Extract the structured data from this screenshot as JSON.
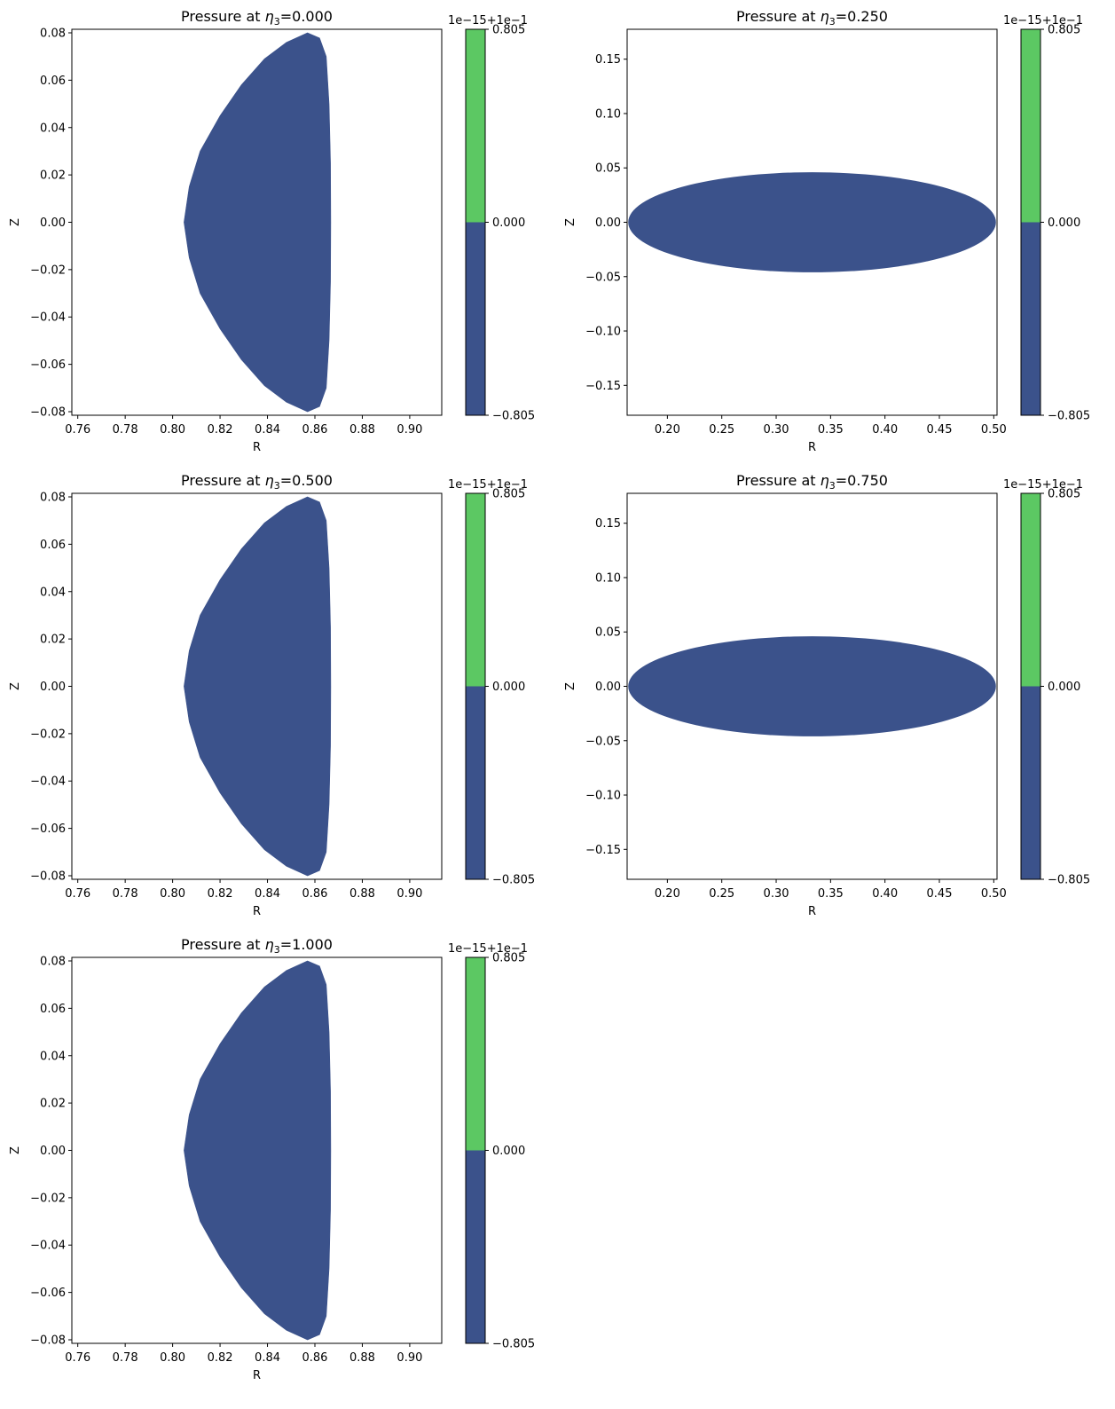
{
  "colors": {
    "interior": "#3b528b",
    "upper": "#5cc863",
    "axis": "#000000"
  },
  "chart_data": [
    {
      "type": "heatmap",
      "title": "Pressure at η3=0.000",
      "title_prefix": "Pressure at ",
      "title_symbol": "η",
      "title_sub": "3",
      "title_value": "=0.000",
      "xlabel": "R",
      "ylabel": "Z",
      "shape": "D-shaped cross-section",
      "xlim": [
        0.7575,
        0.9135
      ],
      "ylim": [
        -0.0815,
        0.0815
      ],
      "xticks": [
        0.76,
        0.78,
        0.8,
        0.82,
        0.84,
        0.86,
        0.88,
        0.9
      ],
      "xtick_labels": [
        "0.76",
        "0.78",
        "0.80",
        "0.82",
        "0.84",
        "0.86",
        "0.88",
        "0.90"
      ],
      "yticks": [
        0.08,
        0.06,
        0.04,
        0.02,
        0.0,
        -0.02,
        -0.04,
        -0.06,
        -0.08
      ],
      "ytick_labels": [
        "0.08",
        "0.06",
        "0.04",
        "0.02",
        "0.00",
        "−0.02",
        "−0.04",
        "−0.06",
        "−0.08"
      ],
      "boundary_r": [
        0.8569,
        0.862,
        0.8648,
        0.866,
        0.8666,
        0.8667,
        0.8666,
        0.866,
        0.8648,
        0.862,
        0.8569,
        0.848,
        0.8387,
        0.829,
        0.82,
        0.8116,
        0.807,
        0.8048,
        0.807,
        0.8116,
        0.82,
        0.829,
        0.8387,
        0.848,
        0.8569
      ],
      "boundary_z": [
        0.08,
        0.0778,
        0.07,
        0.05,
        0.025,
        0.0,
        -0.025,
        -0.05,
        -0.07,
        -0.0778,
        -0.08,
        -0.076,
        -0.069,
        -0.058,
        -0.045,
        -0.03,
        -0.015,
        0.0,
        0.015,
        0.03,
        0.045,
        0.058,
        0.069,
        0.076,
        0.08
      ],
      "colorbar": {
        "offset_label": "1e−15+1e−1",
        "ticks": [
          "0.805",
          "0.000",
          "−0.805"
        ]
      }
    },
    {
      "type": "heatmap",
      "title": "Pressure at η3=0.250",
      "title_prefix": "Pressure at ",
      "title_symbol": "η",
      "title_sub": "3",
      "title_value": "=0.250",
      "xlabel": "R",
      "ylabel": "Z",
      "shape": "elliptical cross-section",
      "xlim": [
        0.163,
        0.503
      ],
      "ylim": [
        -0.1775,
        0.1775
      ],
      "xticks": [
        0.2,
        0.25,
        0.3,
        0.35,
        0.4,
        0.45,
        0.5
      ],
      "xtick_labels": [
        "0.20",
        "0.25",
        "0.30",
        "0.35",
        "0.40",
        "0.45",
        "0.50"
      ],
      "yticks": [
        0.15,
        0.1,
        0.05,
        0.0,
        -0.05,
        -0.1,
        -0.15
      ],
      "ytick_labels": [
        "0.15",
        "0.10",
        "0.05",
        "0.00",
        "−0.05",
        "−0.10",
        "−0.15"
      ],
      "ellipse_center": [
        0.333,
        0.0
      ],
      "ellipse_semi_axes": [
        0.169,
        0.046
      ],
      "colorbar": {
        "offset_label": "1e−15+1e−1",
        "ticks": [
          "0.805",
          "0.000",
          "−0.805"
        ]
      }
    },
    {
      "type": "heatmap",
      "title": "Pressure at η3=0.500",
      "title_prefix": "Pressure at ",
      "title_symbol": "η",
      "title_sub": "3",
      "title_value": "=0.500",
      "xlabel": "R",
      "ylabel": "Z",
      "shape": "D-shaped cross-section",
      "xlim": [
        0.7575,
        0.9135
      ],
      "ylim": [
        -0.0815,
        0.0815
      ],
      "xticks": [
        0.76,
        0.78,
        0.8,
        0.82,
        0.84,
        0.86,
        0.88,
        0.9
      ],
      "xtick_labels": [
        "0.76",
        "0.78",
        "0.80",
        "0.82",
        "0.84",
        "0.86",
        "0.88",
        "0.90"
      ],
      "yticks": [
        0.08,
        0.06,
        0.04,
        0.02,
        0.0,
        -0.02,
        -0.04,
        -0.06,
        -0.08
      ],
      "ytick_labels": [
        "0.08",
        "0.06",
        "0.04",
        "0.02",
        "0.00",
        "−0.02",
        "−0.04",
        "−0.06",
        "−0.08"
      ],
      "boundary_r": [
        0.8569,
        0.862,
        0.8648,
        0.866,
        0.8666,
        0.8667,
        0.8666,
        0.866,
        0.8648,
        0.862,
        0.8569,
        0.848,
        0.8387,
        0.829,
        0.82,
        0.8116,
        0.807,
        0.8048,
        0.807,
        0.8116,
        0.82,
        0.829,
        0.8387,
        0.848,
        0.8569
      ],
      "boundary_z": [
        0.08,
        0.0778,
        0.07,
        0.05,
        0.025,
        0.0,
        -0.025,
        -0.05,
        -0.07,
        -0.0778,
        -0.08,
        -0.076,
        -0.069,
        -0.058,
        -0.045,
        -0.03,
        -0.015,
        0.0,
        0.015,
        0.03,
        0.045,
        0.058,
        0.069,
        0.076,
        0.08
      ],
      "colorbar": {
        "offset_label": "1e−15+1e−1",
        "ticks": [
          "0.805",
          "0.000",
          "−0.805"
        ]
      }
    },
    {
      "type": "heatmap",
      "title": "Pressure at η3=0.750",
      "title_prefix": "Pressure at ",
      "title_symbol": "η",
      "title_sub": "3",
      "title_value": "=0.750",
      "xlabel": "R",
      "ylabel": "Z",
      "shape": "elliptical cross-section",
      "xlim": [
        0.163,
        0.503
      ],
      "ylim": [
        -0.1775,
        0.1775
      ],
      "xticks": [
        0.2,
        0.25,
        0.3,
        0.35,
        0.4,
        0.45,
        0.5
      ],
      "xtick_labels": [
        "0.20",
        "0.25",
        "0.30",
        "0.35",
        "0.40",
        "0.45",
        "0.50"
      ],
      "yticks": [
        0.15,
        0.1,
        0.05,
        0.0,
        -0.05,
        -0.1,
        -0.15
      ],
      "ytick_labels": [
        "0.15",
        "0.10",
        "0.05",
        "0.00",
        "−0.05",
        "−0.10",
        "−0.15"
      ],
      "ellipse_center": [
        0.333,
        0.0
      ],
      "ellipse_semi_axes": [
        0.169,
        0.046
      ],
      "colorbar": {
        "offset_label": "1e−15+1e−1",
        "ticks": [
          "0.805",
          "0.000",
          "−0.805"
        ]
      }
    },
    {
      "type": "heatmap",
      "title": "Pressure at η3=1.000",
      "title_prefix": "Pressure at ",
      "title_symbol": "η",
      "title_sub": "3",
      "title_value": "=1.000",
      "xlabel": "R",
      "ylabel": "Z",
      "shape": "D-shaped cross-section",
      "xlim": [
        0.7575,
        0.9135
      ],
      "ylim": [
        -0.0815,
        0.0815
      ],
      "xticks": [
        0.76,
        0.78,
        0.8,
        0.82,
        0.84,
        0.86,
        0.88,
        0.9
      ],
      "xtick_labels": [
        "0.76",
        "0.78",
        "0.80",
        "0.82",
        "0.84",
        "0.86",
        "0.88",
        "0.90"
      ],
      "yticks": [
        0.08,
        0.06,
        0.04,
        0.02,
        0.0,
        -0.02,
        -0.04,
        -0.06,
        -0.08
      ],
      "ytick_labels": [
        "0.08",
        "0.06",
        "0.04",
        "0.02",
        "0.00",
        "−0.02",
        "−0.04",
        "−0.06",
        "−0.08"
      ],
      "boundary_r": [
        0.8569,
        0.862,
        0.8648,
        0.866,
        0.8666,
        0.8667,
        0.8666,
        0.866,
        0.8648,
        0.862,
        0.8569,
        0.848,
        0.8387,
        0.829,
        0.82,
        0.8116,
        0.807,
        0.8048,
        0.807,
        0.8116,
        0.82,
        0.829,
        0.8387,
        0.848,
        0.8569
      ],
      "boundary_z": [
        0.08,
        0.0778,
        0.07,
        0.05,
        0.025,
        0.0,
        -0.025,
        -0.05,
        -0.07,
        -0.0778,
        -0.08,
        -0.076,
        -0.069,
        -0.058,
        -0.045,
        -0.03,
        -0.015,
        0.0,
        0.015,
        0.03,
        0.045,
        0.058,
        0.069,
        0.076,
        0.08
      ],
      "colorbar": {
        "offset_label": "1e−15+1e−1",
        "ticks": [
          "0.805",
          "0.000",
          "−0.805"
        ]
      }
    }
  ]
}
